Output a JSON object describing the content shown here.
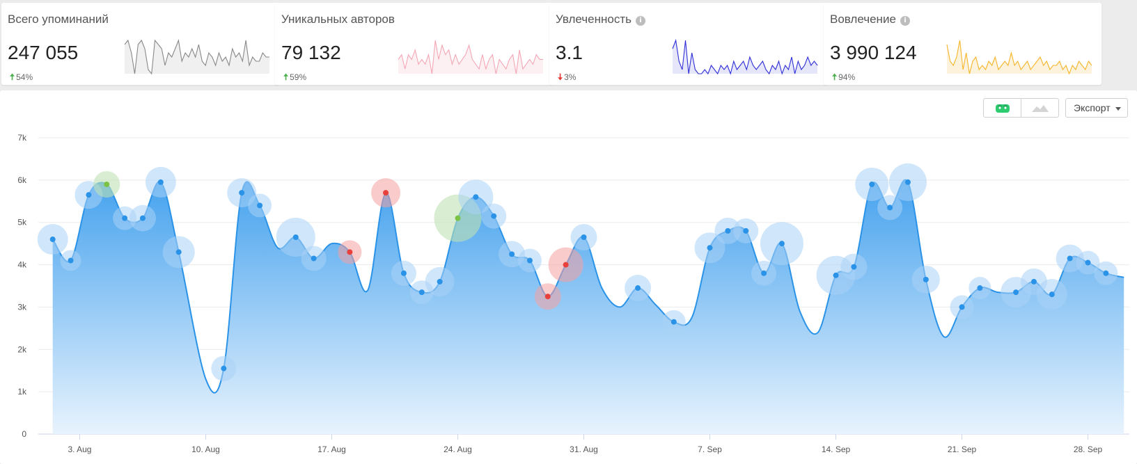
{
  "cards": [
    {
      "title": "Всего упоминаний",
      "info": false,
      "value": "247 055",
      "trend_dir": "up",
      "trend": "54%",
      "spark_color": "#888888",
      "spark_fill": "#f0f0f0",
      "spark": [
        8,
        9,
        6,
        1,
        8,
        9,
        7,
        2,
        1,
        9,
        8,
        7,
        3,
        6,
        5,
        7,
        9,
        4,
        6,
        5,
        7,
        5,
        8,
        4,
        3,
        6,
        5,
        3,
        6,
        4,
        5,
        3,
        7,
        5,
        6,
        4,
        9,
        3,
        5,
        4,
        4,
        6,
        5,
        5
      ]
    },
    {
      "title": "Уникальных авторов",
      "info": false,
      "value": "79 132",
      "trend_dir": "up",
      "trend": "59%",
      "spark_color": "#f4a6b4",
      "spark_fill": "#fdf0f3",
      "spark": [
        5,
        6,
        3,
        6,
        5,
        7,
        4,
        5,
        4,
        6,
        2,
        9,
        5,
        8,
        6,
        7,
        4,
        6,
        4,
        5,
        6,
        8,
        5,
        4,
        3,
        6,
        3,
        5,
        6,
        2,
        5,
        4,
        3,
        5,
        6,
        2,
        7,
        3,
        4,
        5,
        4,
        6,
        5,
        5
      ]
    },
    {
      "title": "Увлеченность",
      "info": true,
      "value": "3.1",
      "trend_dir": "down",
      "trend": "3%",
      "spark_color": "#2e2ed8",
      "spark_fill": "#e6e6fa",
      "spark": [
        7,
        9,
        4,
        2,
        9,
        1,
        6,
        2,
        1,
        1,
        2,
        1,
        3,
        2,
        1,
        3,
        2,
        3,
        1,
        4,
        2,
        3,
        4,
        2,
        5,
        3,
        2,
        3,
        4,
        2,
        1,
        3,
        2,
        4,
        1,
        3,
        2,
        5,
        1,
        4,
        2,
        3,
        5,
        3,
        4,
        3
      ]
    },
    {
      "title": "Вовлечение",
      "info": true,
      "value": "3 990 124",
      "trend_dir": "up",
      "trend": "94%",
      "spark_color": "#f5b529",
      "spark_fill": "#fdf3dc",
      "spark": [
        8,
        4,
        3,
        5,
        9,
        2,
        6,
        1,
        4,
        5,
        2,
        3,
        2,
        4,
        3,
        5,
        2,
        3,
        4,
        3,
        6,
        3,
        4,
        2,
        3,
        4,
        2,
        3,
        4,
        5,
        3,
        4,
        2,
        3,
        3,
        4,
        2,
        3,
        1,
        3,
        2,
        4,
        3,
        2,
        4,
        3
      ]
    }
  ],
  "toolbar": {
    "export_label": "Экспорт"
  },
  "chart_data": {
    "type": "area",
    "y_ticks": [
      "0",
      "1k",
      "2k",
      "3k",
      "4k",
      "5k",
      "6k",
      "7k"
    ],
    "ylim": [
      0,
      7000
    ],
    "x_tick_labels": [
      "3. Aug",
      "10. Aug",
      "17. Aug",
      "24. Aug",
      "31. Aug",
      "7. Sep",
      "14. Sep",
      "21. Sep",
      "28. Sep"
    ],
    "x_tick_days": [
      3,
      10,
      17,
      24,
      31,
      38,
      45,
      52,
      59
    ],
    "x_range": [
      0.7,
      61.3
    ],
    "line_color": "#2a93e8",
    "fill_top": "#45a2ee",
    "fill_bottom": "#e8f3fd",
    "series": [
      {
        "points": [
          [
            1.5,
            4600
          ],
          [
            2.5,
            4100
          ],
          [
            3.5,
            5650
          ],
          [
            4.5,
            5900
          ],
          [
            5.5,
            5100
          ],
          [
            6.5,
            5100
          ],
          [
            7.5,
            5950
          ],
          [
            8.5,
            4300
          ],
          [
            10.0,
            1300
          ],
          [
            11.0,
            1550
          ],
          [
            12.0,
            5700
          ],
          [
            13.0,
            5400
          ],
          [
            14.0,
            4400
          ],
          [
            15.0,
            4650
          ],
          [
            16.0,
            4150
          ],
          [
            17.0,
            4500
          ],
          [
            18.0,
            4300
          ],
          [
            19.0,
            3400
          ],
          [
            20.0,
            5700
          ],
          [
            21.0,
            3800
          ],
          [
            22.0,
            3350
          ],
          [
            23.0,
            3600
          ],
          [
            24.0,
            5100
          ],
          [
            25.0,
            5600
          ],
          [
            26.0,
            5150
          ],
          [
            27.0,
            4250
          ],
          [
            28.0,
            4100
          ],
          [
            29.0,
            3250
          ],
          [
            30.0,
            4000
          ],
          [
            31.0,
            4650
          ],
          [
            32.0,
            3450
          ],
          [
            33.0,
            3000
          ],
          [
            34.0,
            3450
          ],
          [
            35.0,
            3050
          ],
          [
            36.0,
            2650
          ],
          [
            37.0,
            2750
          ],
          [
            38.0,
            4400
          ],
          [
            39.0,
            4800
          ],
          [
            40.0,
            4800
          ],
          [
            41.0,
            3800
          ],
          [
            42.0,
            4500
          ],
          [
            43.0,
            2900
          ],
          [
            44.0,
            2400
          ],
          [
            45.0,
            3750
          ],
          [
            46.0,
            3950
          ],
          [
            47.0,
            5900
          ],
          [
            48.0,
            5350
          ],
          [
            49.0,
            5950
          ],
          [
            50.0,
            3650
          ],
          [
            51.0,
            2300
          ],
          [
            52.0,
            3000
          ],
          [
            53.0,
            3450
          ],
          [
            54.0,
            3350
          ],
          [
            55.0,
            3350
          ],
          [
            56.0,
            3600
          ],
          [
            57.0,
            3300
          ],
          [
            58.0,
            4150
          ],
          [
            59.0,
            4050
          ],
          [
            60.0,
            3800
          ],
          [
            61.0,
            3700
          ]
        ]
      }
    ],
    "markers": [
      [
        1.5,
        4600,
        "blue",
        22
      ],
      [
        2.5,
        4100,
        "blue",
        15
      ],
      [
        3.5,
        5650,
        "blue",
        20
      ],
      [
        4.5,
        5900,
        "green",
        19
      ],
      [
        5.5,
        5100,
        "blue",
        17
      ],
      [
        6.5,
        5100,
        "blue",
        19
      ],
      [
        7.5,
        5950,
        "blue",
        22
      ],
      [
        8.5,
        4300,
        "blue",
        23
      ],
      [
        11.0,
        1550,
        "blue",
        18
      ],
      [
        12.0,
        5700,
        "blue",
        21
      ],
      [
        13.0,
        5400,
        "blue",
        17
      ],
      [
        15.0,
        4650,
        "blue",
        28
      ],
      [
        16.0,
        4150,
        "blue",
        18
      ],
      [
        18.0,
        4300,
        "red",
        17
      ],
      [
        20.0,
        5700,
        "red",
        21
      ],
      [
        21.0,
        3800,
        "blue",
        18
      ],
      [
        22.0,
        3350,
        "blue",
        17
      ],
      [
        23.0,
        3600,
        "blue",
        21
      ],
      [
        24.0,
        5100,
        "green",
        34
      ],
      [
        25.0,
        5600,
        "blue",
        25
      ],
      [
        26.0,
        5150,
        "blue",
        18
      ],
      [
        27.0,
        4250,
        "blue",
        19
      ],
      [
        28.0,
        4100,
        "blue",
        17
      ],
      [
        29.0,
        3250,
        "red",
        19
      ],
      [
        30.0,
        4000,
        "red",
        25
      ],
      [
        31.0,
        4650,
        "blue",
        19
      ],
      [
        34.0,
        3450,
        "blue",
        19
      ],
      [
        36.0,
        2650,
        "blue",
        17
      ],
      [
        38.0,
        4400,
        "blue",
        22
      ],
      [
        39.0,
        4800,
        "blue",
        19
      ],
      [
        40.0,
        4800,
        "blue",
        18
      ],
      [
        41.0,
        3800,
        "blue",
        18
      ],
      [
        42.0,
        4500,
        "blue",
        31
      ],
      [
        45.0,
        3750,
        "blue",
        28
      ],
      [
        46.0,
        3950,
        "blue",
        19
      ],
      [
        47.0,
        5900,
        "blue",
        24
      ],
      [
        48.0,
        5350,
        "blue",
        18
      ],
      [
        49.0,
        5950,
        "blue",
        27
      ],
      [
        50.0,
        3650,
        "blue",
        20
      ],
      [
        52.0,
        3000,
        "blue",
        17
      ],
      [
        53.0,
        3450,
        "blue",
        16
      ],
      [
        55.0,
        3350,
        "blue",
        22
      ],
      [
        56.0,
        3600,
        "blue",
        19
      ],
      [
        57.0,
        3300,
        "blue",
        22
      ],
      [
        58.0,
        4150,
        "blue",
        20
      ],
      [
        59.0,
        4050,
        "blue",
        17
      ],
      [
        60.0,
        3800,
        "blue",
        17
      ]
    ]
  }
}
